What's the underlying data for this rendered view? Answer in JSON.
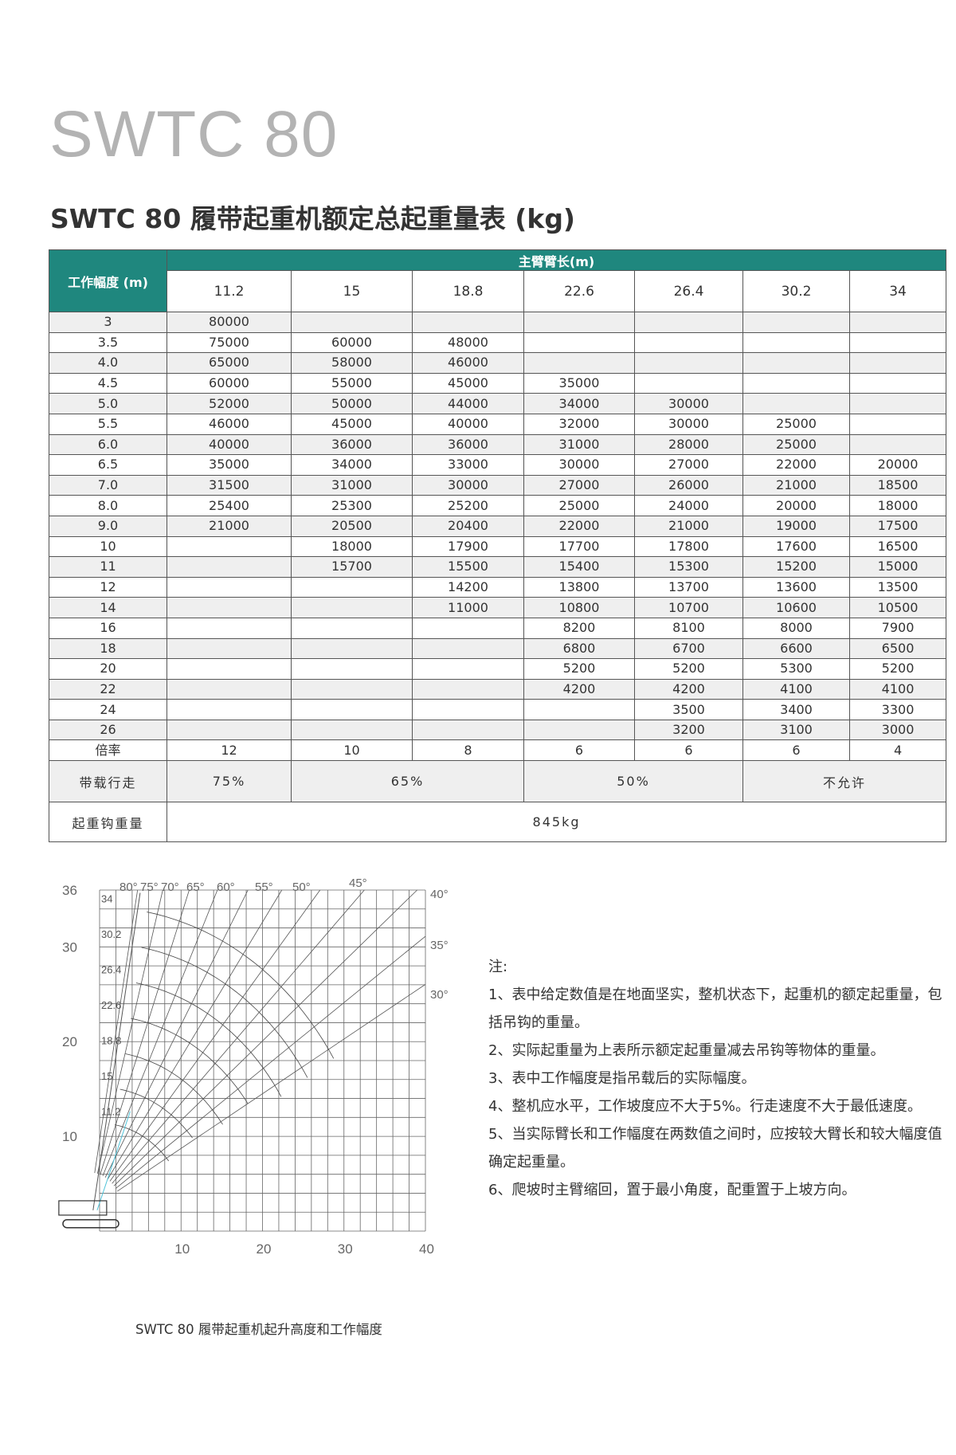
{
  "title": "SWTC 80",
  "subtitle": "SWTC 80 履带起重机额定总起重量表 (kg)",
  "table": {
    "radius_header": "工作幅度 (m)",
    "boom_header": "主臂臂长(m)",
    "boom_lengths": [
      "11.2",
      "15",
      "18.8",
      "22.6",
      "26.4",
      "30.2",
      "34"
    ],
    "rows": [
      {
        "r": "3",
        "v": [
          "80000",
          "",
          "",
          "",
          "",
          "",
          ""
        ]
      },
      {
        "r": "3.5",
        "v": [
          "75000",
          "60000",
          "48000",
          "",
          "",
          "",
          ""
        ]
      },
      {
        "r": "4.0",
        "v": [
          "65000",
          "58000",
          "46000",
          "",
          "",
          "",
          ""
        ]
      },
      {
        "r": "4.5",
        "v": [
          "60000",
          "55000",
          "45000",
          "35000",
          "",
          "",
          ""
        ]
      },
      {
        "r": "5.0",
        "v": [
          "52000",
          "50000",
          "44000",
          "34000",
          "30000",
          "",
          ""
        ]
      },
      {
        "r": "5.5",
        "v": [
          "46000",
          "45000",
          "40000",
          "32000",
          "30000",
          "25000",
          ""
        ]
      },
      {
        "r": "6.0",
        "v": [
          "40000",
          "36000",
          "36000",
          "31000",
          "28000",
          "25000",
          ""
        ]
      },
      {
        "r": "6.5",
        "v": [
          "35000",
          "34000",
          "33000",
          "30000",
          "27000",
          "22000",
          "20000"
        ]
      },
      {
        "r": "7.0",
        "v": [
          "31500",
          "31000",
          "30000",
          "27000",
          "26000",
          "21000",
          "18500"
        ]
      },
      {
        "r": "8.0",
        "v": [
          "25400",
          "25300",
          "25200",
          "25000",
          "24000",
          "20000",
          "18000"
        ]
      },
      {
        "r": "9.0",
        "v": [
          "21000",
          "20500",
          "20400",
          "22000",
          "21000",
          "19000",
          "17500"
        ]
      },
      {
        "r": "10",
        "v": [
          "",
          "18000",
          "17900",
          "17700",
          "17800",
          "17600",
          "16500"
        ]
      },
      {
        "r": "11",
        "v": [
          "",
          "15700",
          "15500",
          "15400",
          "15300",
          "15200",
          "15000"
        ]
      },
      {
        "r": "12",
        "v": [
          "",
          "",
          "14200",
          "13800",
          "13700",
          "13600",
          "13500"
        ]
      },
      {
        "r": "14",
        "v": [
          "",
          "",
          "11000",
          "10800",
          "10700",
          "10600",
          "10500"
        ]
      },
      {
        "r": "16",
        "v": [
          "",
          "",
          "",
          "8200",
          "8100",
          "8000",
          "7900"
        ]
      },
      {
        "r": "18",
        "v": [
          "",
          "",
          "",
          "6800",
          "6700",
          "6600",
          "6500"
        ]
      },
      {
        "r": "20",
        "v": [
          "",
          "",
          "",
          "5200",
          "5200",
          "5300",
          "5200"
        ]
      },
      {
        "r": "22",
        "v": [
          "",
          "",
          "",
          "4200",
          "4200",
          "4100",
          "4100"
        ]
      },
      {
        "r": "24",
        "v": [
          "",
          "",
          "",
          "",
          "3500",
          "3400",
          "3300"
        ]
      },
      {
        "r": "26",
        "v": [
          "",
          "",
          "",
          "",
          "3200",
          "3100",
          "3000"
        ]
      }
    ],
    "reeving_label": "倍率",
    "reeving": [
      "12",
      "10",
      "8",
      "6",
      "6",
      "6",
      "4"
    ],
    "walk_label": "带载行走",
    "walk": [
      {
        "text": "75%",
        "span": 1
      },
      {
        "text": "65%",
        "span": 2
      },
      {
        "text": "50%",
        "span": 2
      },
      {
        "text": "不允许",
        "span": 2
      }
    ],
    "hook_label": "起重钩重量",
    "hook_weight": "845kg"
  },
  "diagram": {
    "y_ticks": [
      "36",
      "30",
      "20",
      "10"
    ],
    "x_ticks": [
      "10",
      "20",
      "30",
      "40"
    ],
    "angles_top": [
      "80°",
      "75°",
      "70°",
      "65°",
      "60°",
      "55°",
      "50°",
      "45°"
    ],
    "angles_right": [
      "40°",
      "35°",
      "30°"
    ],
    "boom_labels": [
      "34",
      "30.2",
      "26.4",
      "22.6",
      "18.8",
      "15",
      "11.2"
    ],
    "caption": "SWTC 80 履带起重机起升高度和工作幅度",
    "boom_color": "#4fc3d9"
  },
  "notes": {
    "heading": "注:",
    "items": [
      "1、表中给定数值是在地面坚实，整机状态下，起重机的额定起重量，包括吊钩的重量。",
      "2、实际起重量为上表所示额定起重量减去吊钩等物体的重量。",
      "3、表中工作幅度是指吊载后的实际幅度。",
      "4、整机应水平，工作坡度应不大于5%。行走速度不大于最低速度。",
      "5、当实际臂长和工作幅度在两数值之间时，应按较大臂长和较大幅度值确定起重量。",
      "6、爬坡时主臂缩回，置于最小角度，配重置于上坡方向。"
    ]
  },
  "colors": {
    "header_teal": "#1f877e",
    "row_alt": "#efefef",
    "title_gray": "#b3b3b3"
  }
}
